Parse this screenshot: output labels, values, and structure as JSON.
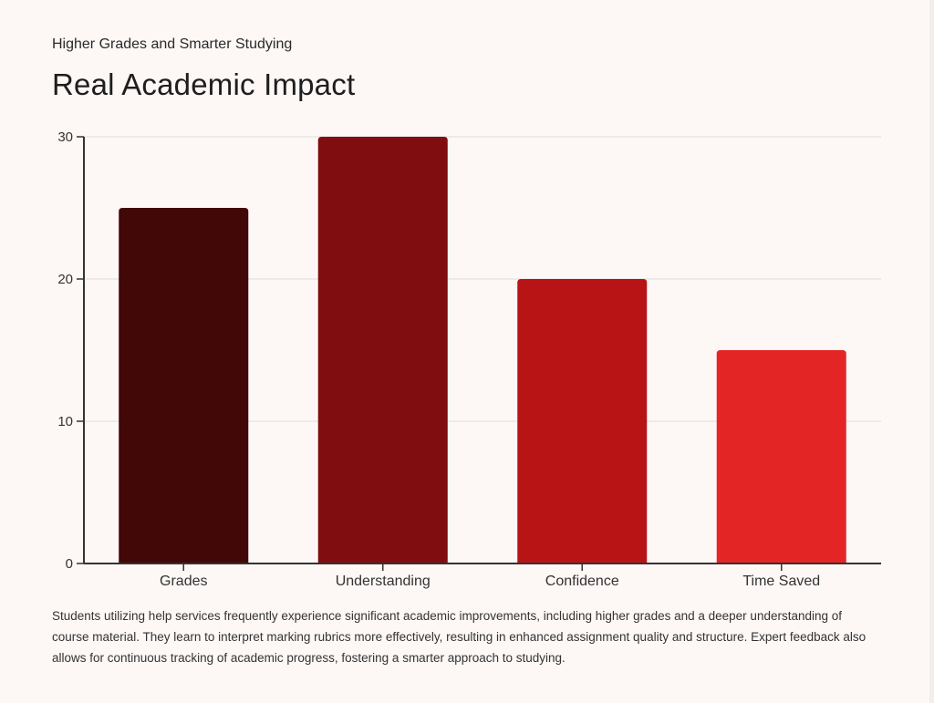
{
  "header": {
    "subtitle": "Higher Grades and Smarter Studying",
    "title": "Real Academic Impact"
  },
  "description": "Students utilizing help services frequently experience significant academic improvements, including higher grades and a deeper understanding of course material. They learn to interpret marking rubrics more effectively, resulting in enhanced assignment quality and structure. Expert feedback also allows for continuous tracking of academic progress, fostering a smarter approach to studying.",
  "chart_data": {
    "type": "bar",
    "categories": [
      "Grades",
      "Understanding",
      "Confidence",
      "Time Saved"
    ],
    "values": [
      25,
      30,
      20,
      15
    ],
    "colors": [
      "#420707",
      "#800d0f",
      "#b81416",
      "#e42526"
    ],
    "ylim": [
      0,
      30
    ],
    "yticks": [
      0,
      10,
      20,
      30
    ],
    "grid": true,
    "xlabel": "",
    "ylabel": ""
  }
}
